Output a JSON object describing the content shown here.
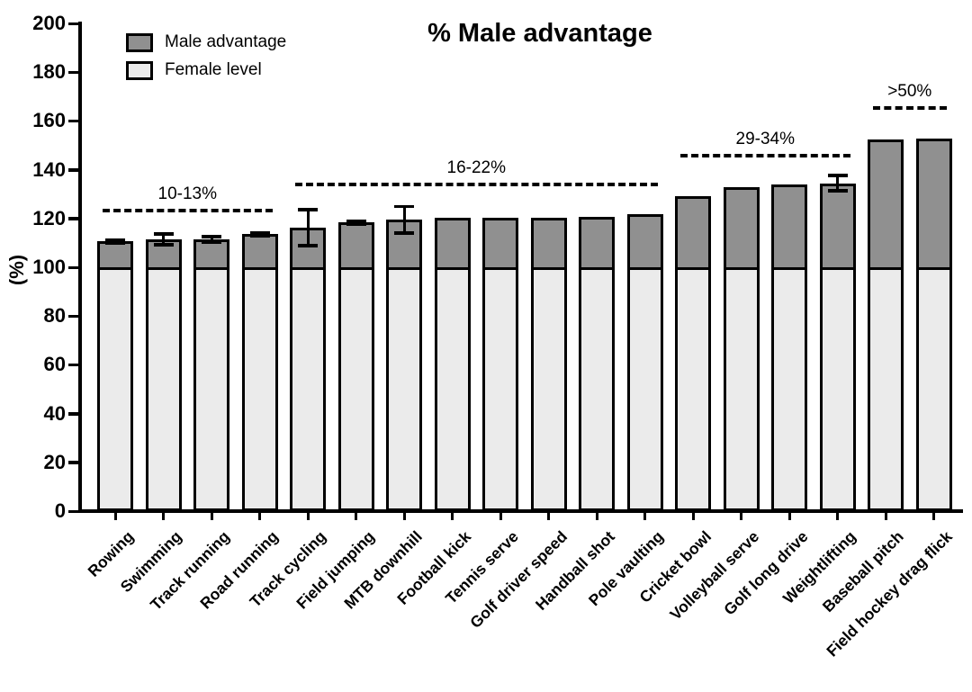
{
  "figure": {
    "title": "% Male advantage"
  },
  "legend": {
    "items": [
      {
        "label": "Male advantage",
        "key": "male"
      },
      {
        "label": "Female level",
        "key": "female"
      }
    ]
  },
  "y_axis": {
    "label": "(%)",
    "min": 0,
    "max": 200,
    "step": 20,
    "tick_labels": [
      "0",
      "20",
      "40",
      "60",
      "80",
      "100",
      "120",
      "140",
      "160",
      "180",
      "200"
    ]
  },
  "chart_data": {
    "type": "bar",
    "stacked": true,
    "title": "% Male advantage",
    "ylabel": "(%)",
    "ylim": [
      0,
      200
    ],
    "grid": false,
    "legend_position": "top-left",
    "categories": [
      "Rowing",
      "Swimming",
      "Track running",
      "Road running",
      "Track cycling",
      "Field jumping",
      "MTB downhill",
      "Football kick",
      "Tennis serve",
      "Golf driver speed",
      "Handball shot",
      "Pole vaulting",
      "Cricket bowl",
      "Volleyball serve",
      "Golf long drive",
      "Weightlifting",
      "Baseball pitch",
      "Field hockey drag flick"
    ],
    "series": [
      {
        "name": "Female level",
        "color": "#ebebeb",
        "values": [
          100,
          100,
          100,
          100,
          100,
          100,
          100,
          100,
          100,
          100,
          100,
          100,
          100,
          100,
          100,
          100,
          100,
          100
        ]
      },
      {
        "name": "Male advantage",
        "color": "#909090",
        "values": [
          10.6,
          11.4,
          11.3,
          13.5,
          16.3,
          18.3,
          19.5,
          20.2,
          20.2,
          20.3,
          20.5,
          21.8,
          29.0,
          32.8,
          33.8,
          34.5,
          52.4,
          52.8
        ]
      }
    ],
    "bar_totals": [
      110.6,
      111.4,
      111.3,
      113.5,
      116.3,
      118.3,
      119.5,
      120.2,
      120.2,
      120.3,
      120.5,
      121.8,
      129.0,
      132.8,
      133.8,
      134.5,
      152.4,
      152.8
    ],
    "error_bars": [
      0.7,
      2.3,
      1.3,
      0.6,
      7.5,
      0.7,
      5.5,
      0,
      0,
      0,
      0,
      0,
      0,
      0,
      0,
      3.3,
      0,
      0
    ],
    "annotations": [
      {
        "label": "10-13%",
        "level": 123.3,
        "from_bar": 0,
        "to_bar": 3
      },
      {
        "label": "16-22%",
        "level": 134.0,
        "from_bar": 4,
        "to_bar": 11
      },
      {
        "label": "29-34%",
        "level": 145.8,
        "from_bar": 12,
        "to_bar": 15
      },
      {
        "label": ">50%",
        "level": 165.3,
        "from_bar": 16,
        "to_bar": 17
      }
    ]
  },
  "colors": {
    "male_advantage": "#909090",
    "female_level": "#ebebeb",
    "axis": "#000000",
    "background": "#ffffff"
  }
}
